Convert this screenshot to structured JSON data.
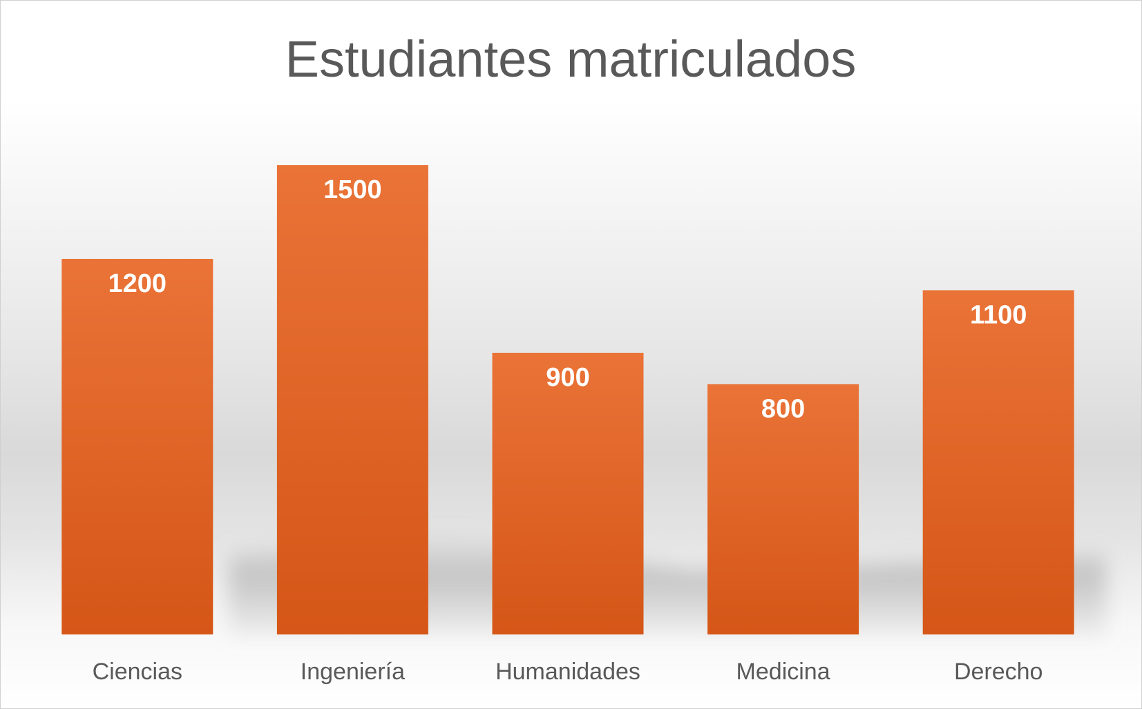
{
  "chart_data": {
    "type": "bar",
    "title": "Estudiantes matriculados",
    "categories": [
      "Ciencias",
      "Ingeniería",
      "Humanidades",
      "Medicina",
      "Derecho"
    ],
    "series": [
      {
        "values": [
          1200,
          1500,
          900,
          800,
          1100
        ]
      }
    ],
    "ylim": [
      0,
      1700
    ],
    "grid": false,
    "legend": "none",
    "data_labels": "inside-end",
    "colors": {
      "bar_top": "#ea7337",
      "bar_bottom": "#d55617",
      "title": "#595959",
      "tick_label": "#595959",
      "data_label": "#ffffff"
    }
  }
}
